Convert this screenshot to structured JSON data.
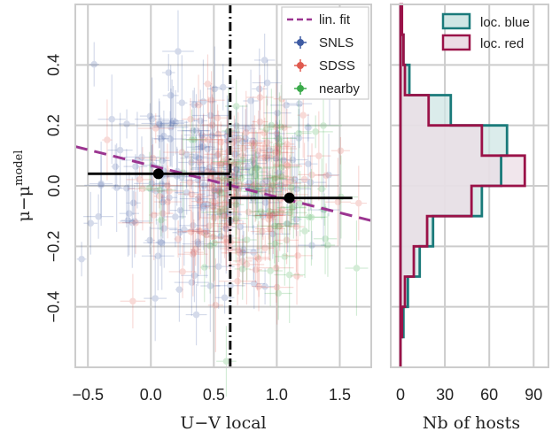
{
  "chart_data": [
    {
      "type": "scatter",
      "title": "",
      "xlabel": "U−V local",
      "ylabel": "μ−μ",
      "ylabel_sup": "model",
      "xlim": [
        -0.6,
        1.75
      ],
      "ylim": [
        -0.6,
        0.6
      ],
      "xticks": [
        -0.5,
        0.0,
        0.5,
        1.0,
        1.5
      ],
      "xtick_labels": [
        "−0.5",
        "0.0",
        "0.5",
        "1.0",
        "1.5"
      ],
      "yticks": [
        0.4,
        0.2,
        0.0,
        -0.2,
        -0.4
      ],
      "ytick_labels": [
        "0.4",
        "0.2",
        "0.0",
        "−0.2",
        "−0.4"
      ],
      "grid": true,
      "legend_position": "top-right",
      "legend": [
        {
          "label": "lin. fit",
          "style": "dashed-line",
          "color": "#9b3590"
        },
        {
          "label": "SNLS",
          "style": "errorbar-point",
          "color": "#3e5ba3"
        },
        {
          "label": "SDSS",
          "style": "errorbar-point",
          "color": "#e05a4f"
        },
        {
          "label": "nearby",
          "style": "errorbar-point",
          "color": "#3aaa4a"
        }
      ],
      "linear_fit": {
        "x": [
          -0.6,
          1.75
        ],
        "y": [
          0.13,
          -0.115
        ],
        "color": "#9b3590"
      },
      "split_line": {
        "x": 0.63,
        "color": "#111111"
      },
      "binned_means": [
        {
          "x": 0.06,
          "y": 0.04,
          "x_range": [
            -0.5,
            0.63
          ],
          "color": "#000000"
        },
        {
          "x": 1.1,
          "y": -0.04,
          "x_range": [
            0.63,
            1.6
          ],
          "color": "#000000"
        }
      ],
      "series": [
        {
          "name": "SNLS",
          "color": "#3e5ba3",
          "n": 180,
          "x_mean": 0.5,
          "x_sd": 0.45,
          "y_mean": 0.02,
          "y_sd": 0.17
        },
        {
          "name": "SDSS",
          "color": "#e05a4f",
          "n": 150,
          "x_mean": 0.65,
          "x_sd": 0.35,
          "y_mean": 0.0,
          "y_sd": 0.15
        },
        {
          "name": "nearby",
          "color": "#3aaa4a",
          "n": 70,
          "x_mean": 0.8,
          "x_sd": 0.35,
          "y_mean": -0.02,
          "y_sd": 0.15
        }
      ]
    },
    {
      "type": "histogram",
      "orientation": "horizontal",
      "xlabel": "Nb of hosts",
      "xlim": [
        0,
        100
      ],
      "xticks": [
        0,
        30,
        60,
        90
      ],
      "xtick_labels": [
        "0",
        "30",
        "60",
        "90"
      ],
      "ylim": [
        -0.6,
        0.6
      ],
      "grid": true,
      "legend_position": "top-right",
      "bin_edges": [
        -0.6,
        -0.5,
        -0.4,
        -0.3,
        -0.2,
        -0.1,
        0.0,
        0.1,
        0.2,
        0.3,
        0.4,
        0.5,
        0.6
      ],
      "series": [
        {
          "name": "loc. blue",
          "color": "#1a7a7a",
          "fill": "#cfe6e4",
          "counts": [
            0,
            2,
            5,
            13,
            22,
            55,
            68,
            72,
            34,
            6,
            2,
            0
          ]
        },
        {
          "name": "loc. red",
          "color": "#9a1248",
          "fill": "#ecdde5",
          "counts": [
            0,
            1,
            3,
            9,
            18,
            48,
            84,
            55,
            19,
            3,
            2,
            1
          ]
        }
      ]
    }
  ]
}
